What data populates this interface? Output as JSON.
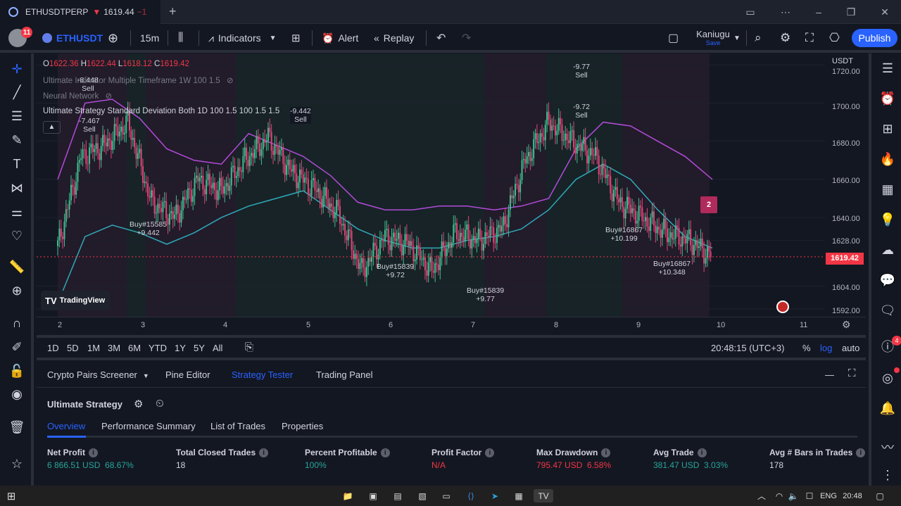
{
  "window": {
    "tab_symbol": "ETHUSDTPERP",
    "tab_arrow": "▼",
    "tab_price": "1619.44",
    "tab_change": "−1",
    "new_tab": "+"
  },
  "toolbar": {
    "notifications": "11",
    "symbol": "ETHUSDT",
    "interval": "15m",
    "indicators": "Indicators",
    "alert": "Alert",
    "replay": "Replay",
    "layout_name": "Kaniugu",
    "layout_status": "Save",
    "publish": "Publish"
  },
  "chart": {
    "ohlc": {
      "o_label": "O",
      "o": "1622.36",
      "h_label": "H",
      "h": "1622.44",
      "l_label": "L",
      "l": "1618.12",
      "c_label": "C",
      "c": "1619.42"
    },
    "legend": [
      "Ultimate Indicator Multiple Timeframe 1W 100 1.5",
      "Neural Network",
      "Ultimate Strategy Standard Deviation Both 1D 100 1.5 100 1.5 1.5"
    ],
    "currency": "USDT",
    "price_labels": [
      "1720.00",
      "1700.00",
      "1680.00",
      "1660.00",
      "1640.00",
      "1628.00",
      "1604.00",
      "1592.00"
    ],
    "current_price": "1619.42",
    "time_labels": [
      "2",
      "3",
      "4",
      "5",
      "6",
      "7",
      "8",
      "9",
      "10",
      "11"
    ],
    "watermark": "TradingView",
    "marker_badge": "2",
    "signals": [
      {
        "text1": "-8.448",
        "text2": "Sell"
      },
      {
        "text1": "-7.467",
        "text2": "Sell"
      },
      {
        "text1": "-9.442",
        "text2": "Sell"
      },
      {
        "text1": "-9.77",
        "text2": "Sell"
      },
      {
        "text1": "-9.72",
        "text2": "Sell"
      },
      {
        "text1": "Buy#15585",
        "text2": "+9.442"
      },
      {
        "text1": "Buy#15839",
        "text2": "+9.72"
      },
      {
        "text1": "Buy#15839",
        "text2": "+9.77"
      },
      {
        "text1": "Buy#16867",
        "text2": "+10.199"
      },
      {
        "text1": "Buy#16867",
        "text2": "+10.348"
      }
    ]
  },
  "chart_data": {
    "type": "candlestick",
    "symbol": "ETHUSDT",
    "interval": "15m",
    "x_range": [
      "2",
      "11"
    ],
    "ylim": [
      1588,
      1726
    ],
    "close": [
      1625,
      1672,
      1678,
      1690,
      1648,
      1640,
      1660,
      1654,
      1670,
      1682,
      1664,
      1655,
      1642,
      1612,
      1630,
      1626,
      1612,
      1632,
      1628,
      1634,
      1670,
      1690,
      1680,
      1672,
      1648,
      1640,
      1632,
      1628,
      1619.42
    ],
    "upper_band": [
      1660,
      1700,
      1702,
      1692,
      1676,
      1670,
      1668,
      1684,
      1678,
      1672,
      1662,
      1648,
      1644,
      1644,
      1646,
      1646,
      1644,
      1646,
      1650,
      1676,
      1690,
      1688,
      1680,
      1672,
      1660
    ],
    "lower_band": [
      1595,
      1630,
      1636,
      1632,
      1626,
      1632,
      1640,
      1646,
      1650,
      1654,
      1644,
      1634,
      1628,
      1624,
      1624,
      1628,
      1630,
      1634,
      1644,
      1660,
      1668,
      1660,
      1644,
      1630,
      1624
    ],
    "last_price": 1619.42
  },
  "timescale": {
    "ranges": [
      "1D",
      "5D",
      "1M",
      "3M",
      "6M",
      "YTD",
      "1Y",
      "5Y",
      "All"
    ],
    "clock": "20:48:15 (UTC+3)",
    "pct": "%",
    "log": "log",
    "auto": "auto"
  },
  "panel": {
    "tabs": [
      "Crypto Pairs Screener",
      "Pine Editor",
      "Strategy Tester",
      "Trading Panel"
    ],
    "strategy_name": "Ultimate Strategy",
    "subtabs": [
      "Overview",
      "Performance Summary",
      "List of Trades",
      "Properties"
    ],
    "metrics": [
      {
        "label": "Net Profit",
        "value": "6 866.51 USD",
        "sub": "68.67%",
        "color": "#26a69a"
      },
      {
        "label": "Total Closed Trades",
        "value": "18",
        "sub": "",
        "color": "#d1d4dc"
      },
      {
        "label": "Percent Profitable",
        "value": "100%",
        "sub": "",
        "color": "#26a69a"
      },
      {
        "label": "Profit Factor",
        "value": "N/A",
        "sub": "",
        "color": "#f23645"
      },
      {
        "label": "Max Drawdown",
        "value": "795.47 USD",
        "sub": "6.58%",
        "color": "#f23645"
      },
      {
        "label": "Avg Trade",
        "value": "381.47 USD",
        "sub": "3.03%",
        "color": "#26a69a"
      },
      {
        "label": "Avg # Bars in Trades",
        "value": "178",
        "sub": "",
        "color": "#d1d4dc"
      }
    ]
  },
  "rightbar": {
    "notif_badge": "4"
  },
  "taskbar": {
    "lang": "ENG",
    "time": "20:48"
  },
  "colors": {
    "accent": "#2962ff",
    "up": "#26a69a",
    "down": "#f23645",
    "band_upper": "#b24bd8",
    "band_lower": "#2fa9b8"
  }
}
